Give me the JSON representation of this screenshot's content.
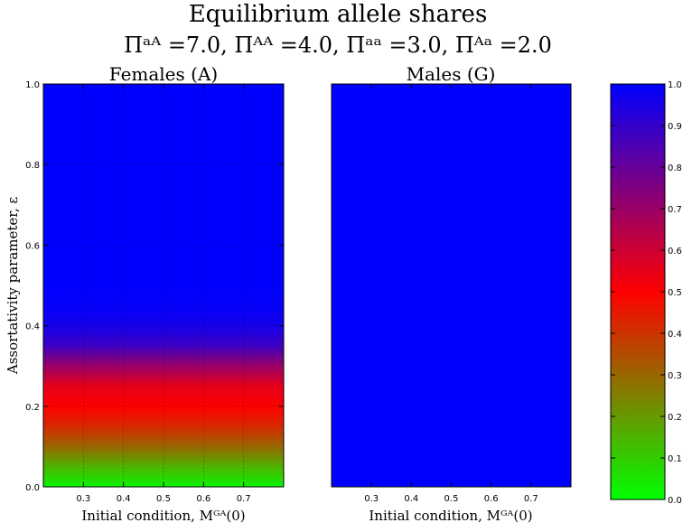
{
  "title": "Equilibrium allele shares",
  "subtitle": "Πᵃᴬ =7.0, Πᴬᴬ =4.0, Πᵃᵃ =3.0, Πᴬᵃ =2.0",
  "colors": {
    "low": "#00ff00",
    "mid": "#ff0000",
    "high": "#0000ff",
    "grid": "#000000"
  },
  "chart_data": [
    {
      "type": "heatmap",
      "panel": "females",
      "title": "Females (A)",
      "xlabel": "Initial condition, Mᴳᴬ(0)",
      "ylabel": "Assortativity parameter, ε",
      "xlim": [
        0.2,
        0.8
      ],
      "ylim": [
        0.0,
        1.0
      ],
      "xticks": [
        0.3,
        0.4,
        0.5,
        0.6,
        0.7
      ],
      "yticks": [
        0.0,
        0.2,
        0.4,
        0.6,
        0.8,
        1.0
      ],
      "x_tick_labels": [
        "0.3",
        "0.4",
        "0.5",
        "0.6",
        "0.7"
      ],
      "y_tick_labels": [
        "0.0",
        "0.2",
        "0.4",
        "0.6",
        "0.8",
        "1.0"
      ],
      "grid": true,
      "profile_by_epsilon": {
        "epsilon": [
          0.0,
          0.05,
          0.1,
          0.15,
          0.2,
          0.25,
          0.3,
          0.35,
          0.4,
          0.45,
          0.5,
          1.0
        ],
        "value": [
          0.02,
          0.15,
          0.3,
          0.42,
          0.5,
          0.55,
          0.7,
          0.88,
          0.96,
          0.99,
          1.0,
          1.0
        ]
      }
    },
    {
      "type": "heatmap",
      "panel": "males",
      "title": "Males (G)",
      "xlabel": "Initial condition, Mᴳᴬ(0)",
      "xlim": [
        0.2,
        0.8
      ],
      "ylim": [
        0.0,
        1.0
      ],
      "xticks": [
        0.3,
        0.4,
        0.5,
        0.6,
        0.7
      ],
      "x_tick_labels": [
        "0.3",
        "0.4",
        "0.5",
        "0.6",
        "0.7"
      ],
      "grid": false,
      "profile_by_epsilon": {
        "epsilon": [
          0.0,
          1.0
        ],
        "value": [
          1.0,
          1.0
        ]
      }
    }
  ],
  "colorbar": {
    "range": [
      0.0,
      1.0
    ],
    "ticks": [
      0.0,
      0.1,
      0.2,
      0.3,
      0.4,
      0.5,
      0.6,
      0.7,
      0.8,
      0.9,
      1.0
    ],
    "tick_labels": [
      "0.0",
      "0.1",
      "0.2",
      "0.3",
      "0.4",
      "0.5",
      "0.6",
      "0.7",
      "0.8",
      "0.9",
      "1.0"
    ]
  }
}
